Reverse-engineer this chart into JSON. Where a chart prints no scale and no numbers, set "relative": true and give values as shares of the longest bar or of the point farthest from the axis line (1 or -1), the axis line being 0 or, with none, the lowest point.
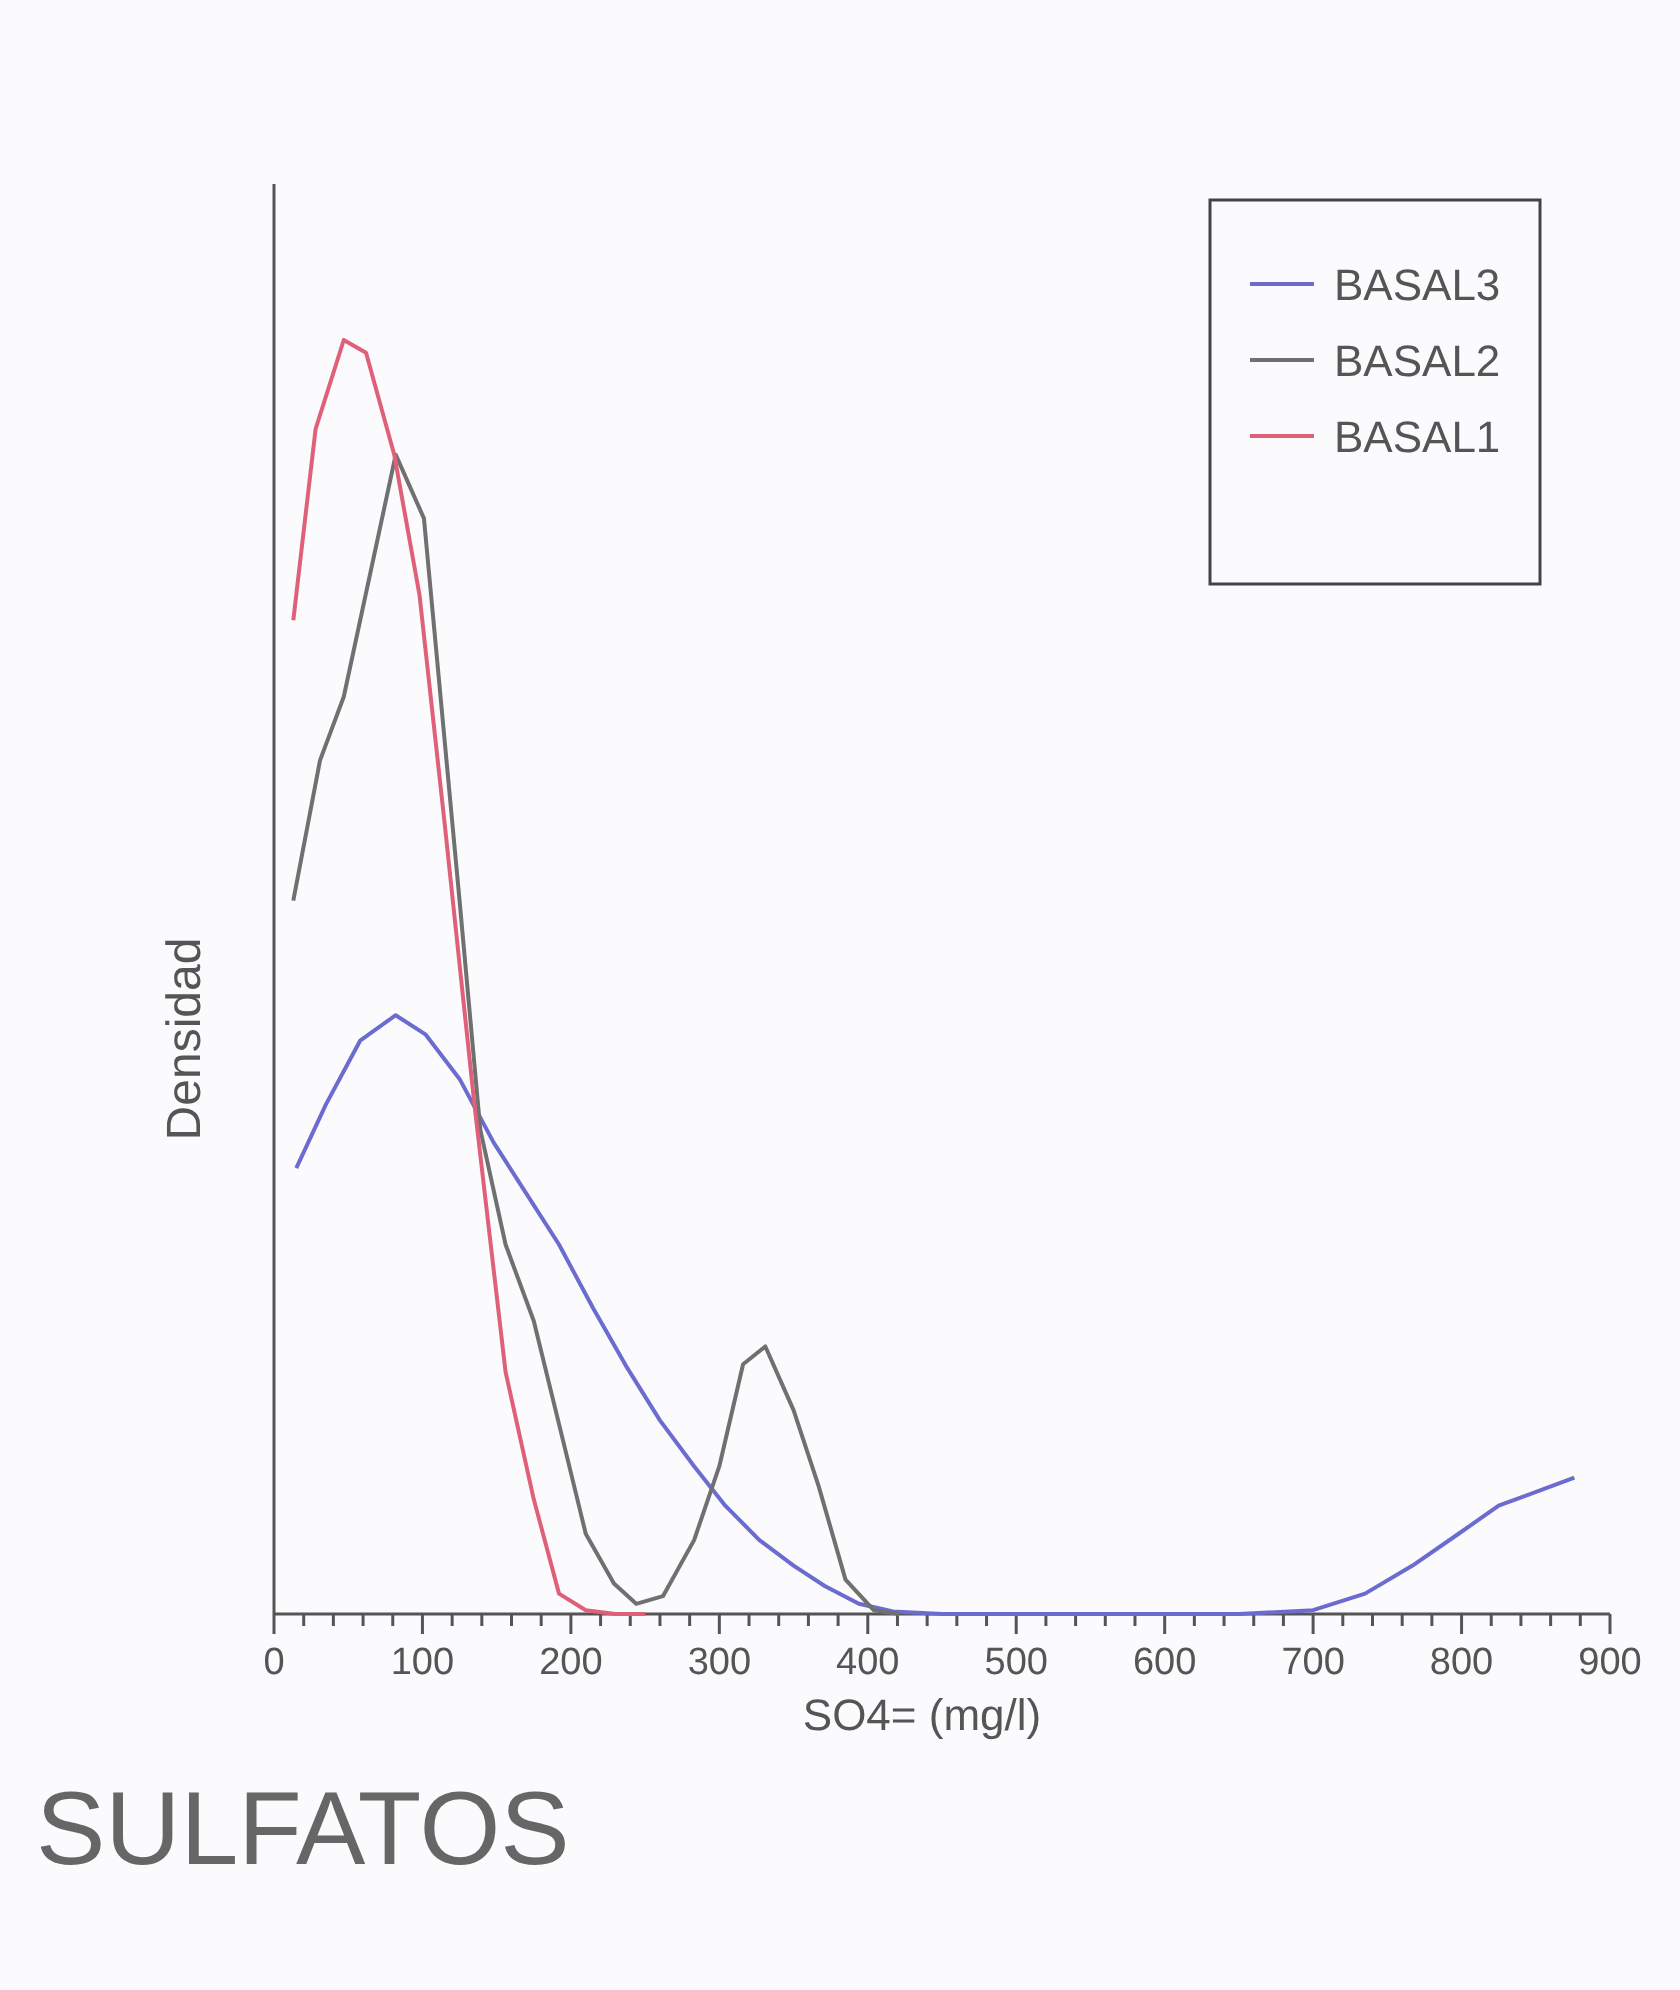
{
  "chart_data": {
    "type": "line",
    "title": "SULFATOS",
    "xlabel": "SO4= (mg/l)",
    "ylabel": "Densidad",
    "relative": true,
    "legend": "top right",
    "xlim": [
      0,
      900
    ],
    "xticks": [
      0,
      {
        "value": 20,
        "label": null
      },
      {
        "value": 40,
        "label": null
      },
      {
        "value": 60,
        "label": null
      },
      {
        "value": 80,
        "label": null
      },
      100,
      {
        "value": 120,
        "label": null
      },
      {
        "value": 140,
        "label": null
      },
      {
        "value": 160,
        "label": null
      },
      {
        "value": 180,
        "label": null
      },
      200,
      {
        "value": 220,
        "label": null
      },
      {
        "value": 240,
        "label": null
      },
      {
        "value": 260,
        "label": null
      },
      {
        "value": 280,
        "label": null
      },
      300,
      {
        "value": 320,
        "label": null
      },
      {
        "value": 340,
        "label": null
      },
      {
        "value": 360,
        "label": null
      },
      {
        "value": 380,
        "label": null
      },
      400,
      {
        "value": 420,
        "label": null
      },
      {
        "value": 440,
        "label": null
      },
      {
        "value": 460,
        "label": null
      },
      {
        "value": 480,
        "label": null
      },
      500,
      {
        "value": 520,
        "label": null
      },
      {
        "value": 540,
        "label": null
      },
      {
        "value": 560,
        "label": null
      },
      {
        "value": 580,
        "label": null
      },
      600,
      {
        "value": 620,
        "label": null
      },
      {
        "value": 640,
        "label": null
      },
      {
        "value": 660,
        "label": null
      },
      {
        "value": 680,
        "label": null
      },
      700,
      {
        "value": 720,
        "label": null
      },
      {
        "value": 740,
        "label": null
      },
      {
        "value": 760,
        "label": null
      },
      {
        "value": 780,
        "label": null
      },
      800,
      {
        "value": 820,
        "label": null
      },
      {
        "value": 840,
        "label": null
      },
      {
        "value": 860,
        "label": null
      },
      {
        "value": 880,
        "label": null
      },
      900
    ],
    "series": [
      {
        "name": "BASAL3",
        "color": "#6c6cd0",
        "x": [
          15,
          35,
          58,
          82,
          102,
          125,
          148,
          170,
          192,
          215,
          237,
          260,
          283,
          304,
          327,
          350,
          371,
          394,
          417,
          450,
          500,
          550,
          600,
          650,
          700,
          735,
          767,
          798,
          825,
          876
        ],
        "values": [
          0.35,
          0.4,
          0.45,
          0.47,
          0.455,
          0.42,
          0.37,
          0.33,
          0.29,
          0.24,
          0.195,
          0.152,
          0.116,
          0.085,
          0.058,
          0.038,
          0.022,
          0.008,
          0.002,
          0,
          0,
          0,
          0,
          0,
          0.003,
          0.016,
          0.038,
          0.063,
          0.085,
          0.107
        ]
      },
      {
        "name": "BASAL2",
        "color": "#707070",
        "x": [
          13,
          31,
          47,
          82,
          101,
          125,
          139,
          156,
          175,
          196,
          210,
          229,
          244,
          262,
          283,
          300,
          316,
          331,
          350,
          367,
          385,
          404,
          421
        ],
        "values": [
          0.56,
          0.67,
          0.72,
          0.91,
          0.86,
          0.56,
          0.38,
          0.29,
          0.23,
          0.13,
          0.063,
          0.024,
          0.008,
          0.014,
          0.058,
          0.116,
          0.196,
          0.21,
          0.16,
          0.1,
          0.027,
          0.003,
          0
        ]
      },
      {
        "name": "BASAL1",
        "color": "#e0607a",
        "x": [
          13,
          28,
          47,
          62,
          81,
          98,
          115,
          135,
          156,
          175,
          192,
          210,
          230,
          250
        ],
        "values": [
          0.78,
          0.93,
          1,
          0.99,
          0.91,
          0.8,
          0.62,
          0.4,
          0.19,
          0.09,
          0.016,
          0.003,
          0,
          0
        ]
      }
    ]
  }
}
